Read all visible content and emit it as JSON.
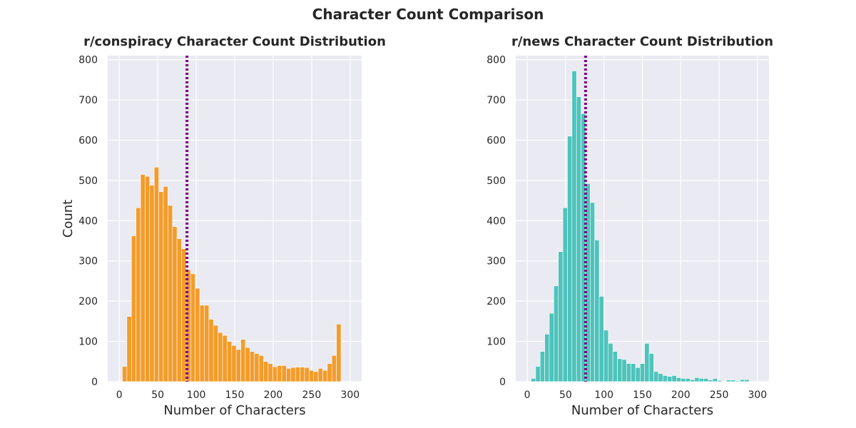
{
  "figure": {
    "title": "Character Count Comparison"
  },
  "chart_data": [
    {
      "type": "bar",
      "title": "r/conspiracy Character Count Distribution",
      "xlabel": "Number of Characters",
      "ylabel": "Count",
      "xlim": [
        -15,
        315
      ],
      "ylim": [
        0,
        810
      ],
      "xticks": [
        0,
        50,
        100,
        150,
        200,
        250,
        300
      ],
      "yticks": [
        0,
        100,
        200,
        300,
        400,
        500,
        600,
        700,
        800
      ],
      "bin_start": 4,
      "bin_width": 5.92,
      "values": [
        38,
        162,
        362,
        432,
        515,
        510,
        488,
        533,
        472,
        485,
        438,
        385,
        355,
        330,
        278,
        268,
        232,
        190,
        190,
        155,
        140,
        122,
        115,
        100,
        90,
        80,
        105,
        85,
        75,
        70,
        65,
        50,
        45,
        37,
        40,
        40,
        33,
        35,
        36,
        36,
        35,
        28,
        25,
        33,
        28,
        45,
        65,
        143
      ],
      "color": "#f39c2b",
      "mean_line": {
        "x": 88,
        "color": "#800080"
      },
      "grid": true
    },
    {
      "type": "bar",
      "title": "r/news Character Count Distribution",
      "xlabel": "Number of Characters",
      "ylabel": "",
      "xlim": [
        -15,
        315
      ],
      "ylim": [
        0,
        810
      ],
      "xticks": [
        0,
        50,
        100,
        150,
        200,
        250,
        300
      ],
      "yticks": [
        0,
        100,
        200,
        300,
        400,
        500,
        600,
        700,
        800
      ],
      "bin_start": 5,
      "bin_width": 5.92,
      "values": [
        8,
        38,
        75,
        118,
        170,
        238,
        323,
        432,
        610,
        772,
        708,
        666,
        492,
        445,
        352,
        212,
        128,
        95,
        75,
        57,
        55,
        45,
        45,
        35,
        45,
        95,
        70,
        25,
        20,
        15,
        13,
        15,
        10,
        8,
        8,
        5,
        10,
        8,
        8,
        4,
        8,
        3,
        0,
        4,
        4,
        2,
        5,
        5
      ],
      "color": "#4ec3bb",
      "mean_line": {
        "x": 76,
        "color": "#800080"
      },
      "grid": true
    }
  ]
}
